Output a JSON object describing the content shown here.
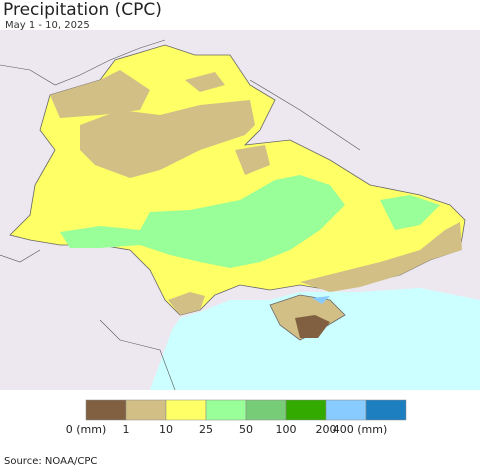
{
  "header": {
    "title": "Precipitation (CPC)",
    "subtitle": "May 1 - 10, 2025"
  },
  "legend": {
    "items": [
      {
        "color": "#806040",
        "label": "0 (mm)"
      },
      {
        "color": "#d2bf86",
        "label": "1"
      },
      {
        "color": "#ffff66",
        "label": "10"
      },
      {
        "color": "#99ff99",
        "label": "25"
      },
      {
        "color": "#77cc77",
        "label": "50"
      },
      {
        "color": "#33aa00",
        "label": "100"
      },
      {
        "color": "#88ccff",
        "label": "200"
      },
      {
        "color": "#1e7fc0",
        "label": "400 (mm)"
      }
    ]
  },
  "footer": {
    "source": "Source: NOAA/CPC"
  }
}
